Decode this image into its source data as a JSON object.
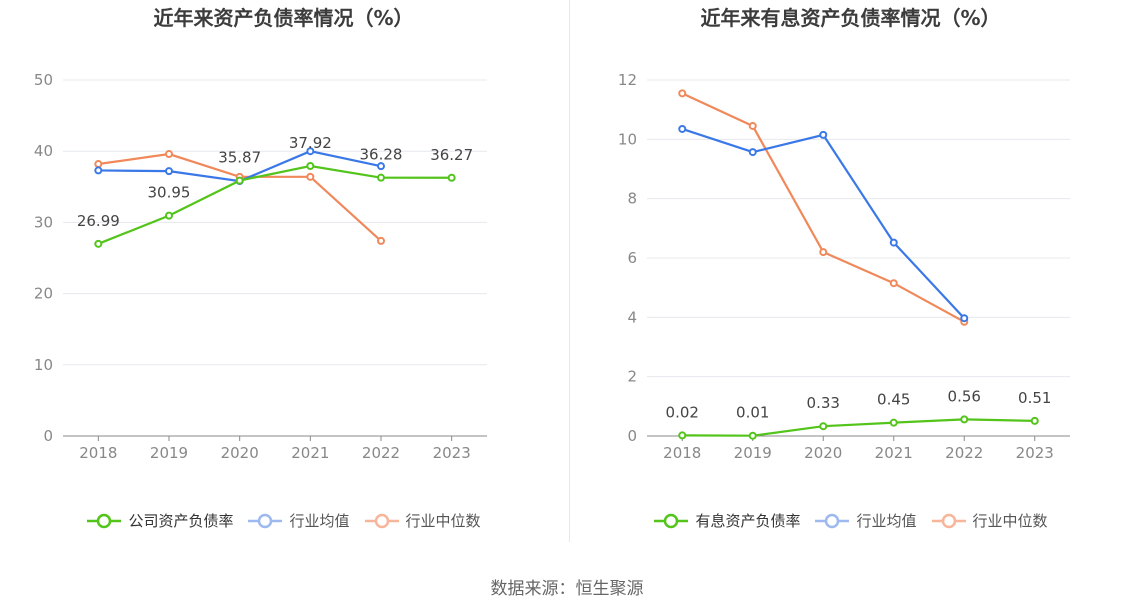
{
  "source": "数据来源：恒生聚源",
  "chart_data": [
    {
      "type": "line",
      "title": "近年来资产负债率情况（%）",
      "categories": [
        "2018",
        "2019",
        "2020",
        "2021",
        "2022",
        "2023"
      ],
      "ylim": [
        0,
        50
      ],
      "yticks": [
        0,
        10,
        20,
        30,
        40,
        50
      ],
      "grid": true,
      "legend_position": "bottom",
      "series": [
        {
          "name": "公司资产负债率",
          "color": "#52c41a",
          "values": [
            26.99,
            30.95,
            35.87,
            37.92,
            36.28,
            36.27
          ],
          "labels": [
            "26.99",
            "30.95",
            "35.87",
            "37.92",
            "36.28",
            "36.27"
          ]
        },
        {
          "name": "行业均值",
          "color": "#3b78e7",
          "values": [
            37.3,
            37.2,
            35.8,
            40.0,
            37.9,
            null
          ]
        },
        {
          "name": "行业中位数",
          "color": "#f0885a",
          "values": [
            38.2,
            39.6,
            36.4,
            36.4,
            27.4,
            null
          ]
        }
      ]
    },
    {
      "type": "line",
      "title": "近年来有息资产负债率情况（%）",
      "categories": [
        "2018",
        "2019",
        "2020",
        "2021",
        "2022",
        "2023"
      ],
      "ylim": [
        0,
        12
      ],
      "yticks": [
        0,
        2,
        4,
        6,
        8,
        10,
        12
      ],
      "grid": true,
      "legend_position": "bottom",
      "series": [
        {
          "name": "有息资产负债率",
          "color": "#52c41a",
          "values": [
            0.02,
            0.01,
            0.33,
            0.45,
            0.56,
            0.51
          ],
          "labels": [
            "0.02",
            "0.01",
            "0.33",
            "0.45",
            "0.56",
            "0.51"
          ]
        },
        {
          "name": "行业均值",
          "color": "#3b78e7",
          "values": [
            10.35,
            9.57,
            10.15,
            6.52,
            3.97,
            null
          ]
        },
        {
          "name": "行业中位数",
          "color": "#f0885a",
          "values": [
            11.55,
            10.45,
            6.2,
            5.15,
            3.85,
            null
          ]
        }
      ]
    }
  ]
}
